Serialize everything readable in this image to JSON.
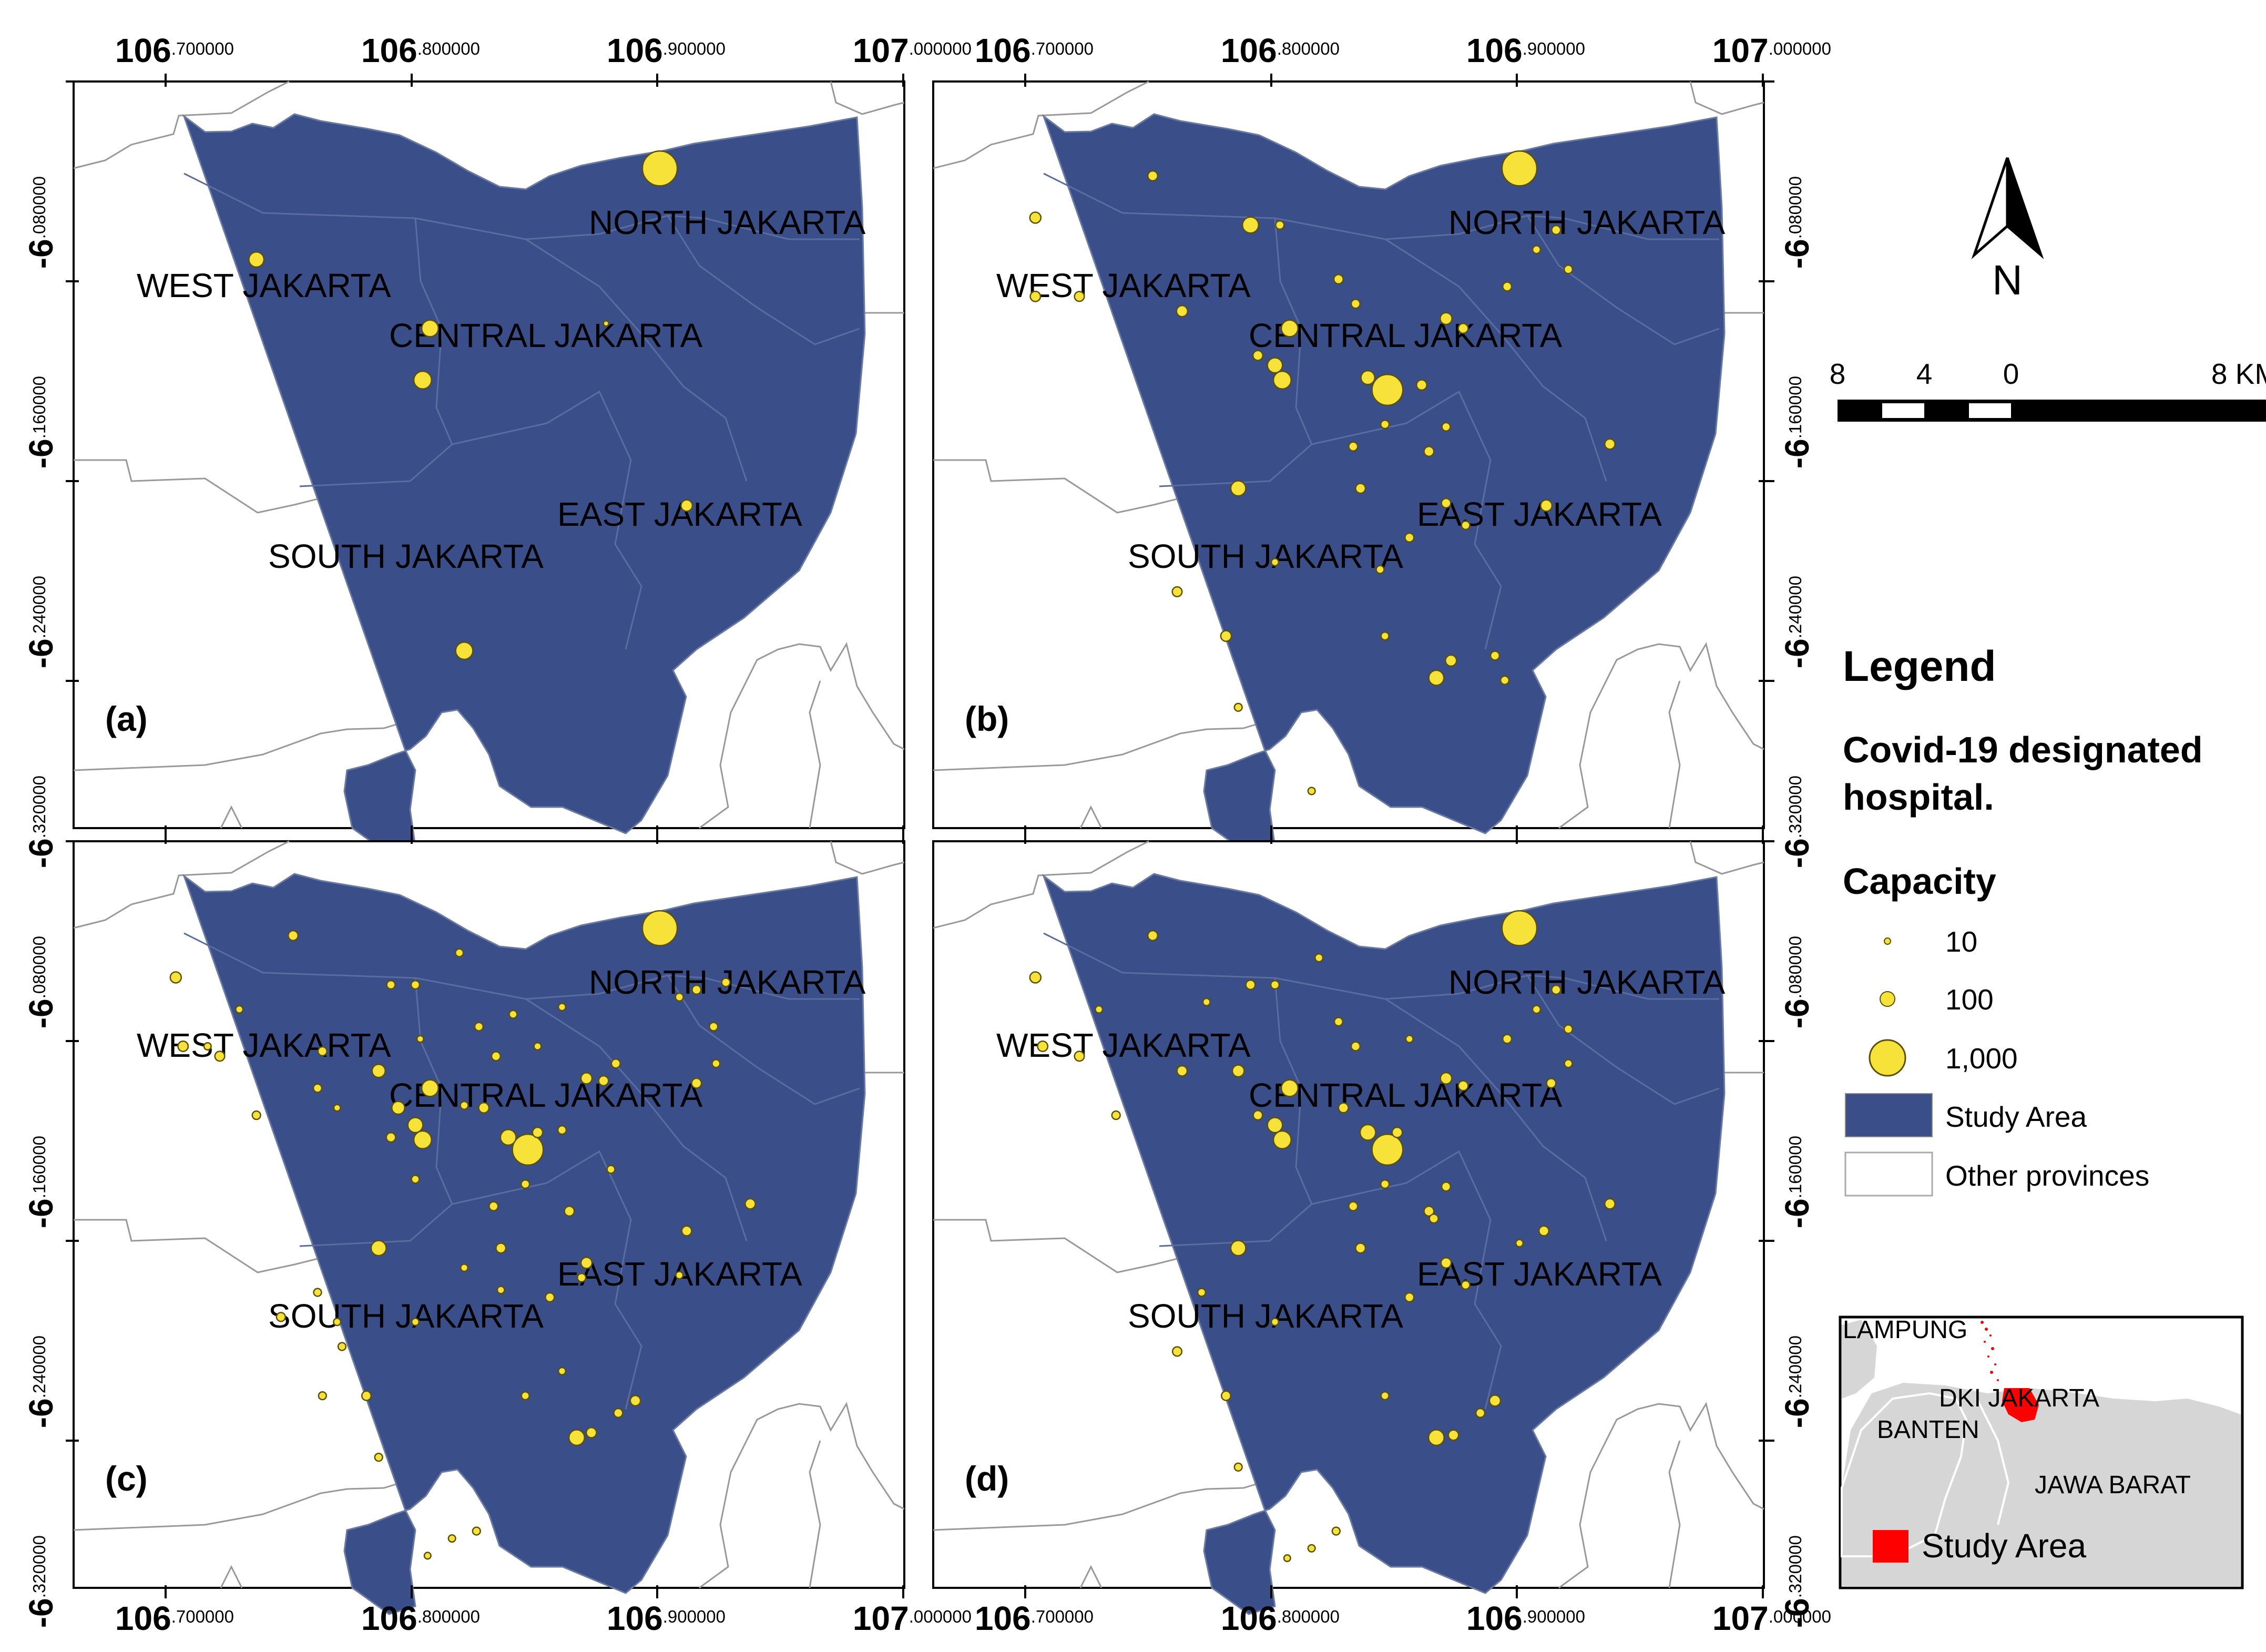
{
  "axes": {
    "x_ticks": [
      {
        "major": "106",
        "minor": ".700000"
      },
      {
        "major": "106",
        "minor": ".800000"
      },
      {
        "major": "106",
        "minor": ".900000"
      },
      {
        "major": "107",
        "minor": ".000000"
      }
    ],
    "y_ticks": [
      {
        "major": "-6",
        "minor": ".080000"
      },
      {
        "major": "-6",
        "minor": ".160000"
      },
      {
        "major": "-6",
        "minor": ".240000"
      },
      {
        "major": "-6",
        "minor": ".320000"
      }
    ]
  },
  "districts": [
    "NORTH JAKARTA",
    "WEST JAKARTA",
    "CENTRAL JAKARTA",
    "EAST JAKARTA",
    "SOUTH JAKARTA"
  ],
  "panels": [
    {
      "letter": "(a)",
      "hospitals": [
        {
          "lon": 106.9,
          "lat": -6.11,
          "cap": 700
        },
        {
          "lon": 106.735,
          "lat": -6.147,
          "cap": 130
        },
        {
          "lon": 106.806,
          "lat": -6.175,
          "cap": 160
        },
        {
          "lon": 106.803,
          "lat": -6.196,
          "cap": 180
        },
        {
          "lon": 106.878,
          "lat": -6.173,
          "cap": 15
        },
        {
          "lon": 106.911,
          "lat": -6.247,
          "cap": 75
        },
        {
          "lon": 106.82,
          "lat": -6.306,
          "cap": 170
        }
      ]
    },
    {
      "letter": "(b)",
      "hospitals": [
        {
          "lon": 106.9,
          "lat": -6.11,
          "cap": 700
        },
        {
          "lon": 106.702,
          "lat": -6.13,
          "cap": 70
        },
        {
          "lon": 106.75,
          "lat": -6.113,
          "cap": 55
        },
        {
          "lon": 106.79,
          "lat": -6.133,
          "cap": 150
        },
        {
          "lon": 106.802,
          "lat": -6.133,
          "cap": 40
        },
        {
          "lon": 106.793,
          "lat": -6.186,
          "cap": 55
        },
        {
          "lon": 106.762,
          "lat": -6.168,
          "cap": 70
        },
        {
          "lon": 106.702,
          "lat": -6.162,
          "cap": 60
        },
        {
          "lon": 106.72,
          "lat": -6.162,
          "cap": 55
        },
        {
          "lon": 106.806,
          "lat": -6.175,
          "cap": 160
        },
        {
          "lon": 106.8,
          "lat": -6.19,
          "cap": 130
        },
        {
          "lon": 106.803,
          "lat": -6.196,
          "cap": 180
        },
        {
          "lon": 106.846,
          "lat": -6.2,
          "cap": 550
        },
        {
          "lon": 106.838,
          "lat": -6.195,
          "cap": 110
        },
        {
          "lon": 106.86,
          "lat": -6.198,
          "cap": 60
        },
        {
          "lon": 106.87,
          "lat": -6.171,
          "cap": 80
        },
        {
          "lon": 106.877,
          "lat": -6.175,
          "cap": 55
        },
        {
          "lon": 106.833,
          "lat": -6.165,
          "cap": 45
        },
        {
          "lon": 106.826,
          "lat": -6.155,
          "cap": 50
        },
        {
          "lon": 106.895,
          "lat": -6.158,
          "cap": 45
        },
        {
          "lon": 106.915,
          "lat": -6.135,
          "cap": 45
        },
        {
          "lon": 106.92,
          "lat": -6.151,
          "cap": 40
        },
        {
          "lon": 106.907,
          "lat": -6.143,
          "cap": 35
        },
        {
          "lon": 106.87,
          "lat": -6.215,
          "cap": 40
        },
        {
          "lon": 106.845,
          "lat": -6.214,
          "cap": 40
        },
        {
          "lon": 106.832,
          "lat": -6.223,
          "cap": 45
        },
        {
          "lon": 106.863,
          "lat": -6.225,
          "cap": 55
        },
        {
          "lon": 106.785,
          "lat": -6.24,
          "cap": 130
        },
        {
          "lon": 106.835,
          "lat": -6.24,
          "cap": 55
        },
        {
          "lon": 106.87,
          "lat": -6.246,
          "cap": 50
        },
        {
          "lon": 106.911,
          "lat": -6.247,
          "cap": 75
        },
        {
          "lon": 106.937,
          "lat": -6.222,
          "cap": 60
        },
        {
          "lon": 106.855,
          "lat": -6.26,
          "cap": 45
        },
        {
          "lon": 106.878,
          "lat": -6.255,
          "cap": 40
        },
        {
          "lon": 106.843,
          "lat": -6.273,
          "cap": 35
        },
        {
          "lon": 106.8,
          "lat": -6.27,
          "cap": 30
        },
        {
          "lon": 106.76,
          "lat": -6.282,
          "cap": 55
        },
        {
          "lon": 106.78,
          "lat": -6.3,
          "cap": 65
        },
        {
          "lon": 106.866,
          "lat": -6.317,
          "cap": 130
        },
        {
          "lon": 106.872,
          "lat": -6.31,
          "cap": 70
        },
        {
          "lon": 106.89,
          "lat": -6.308,
          "cap": 45
        },
        {
          "lon": 106.894,
          "lat": -6.318,
          "cap": 40
        },
        {
          "lon": 106.845,
          "lat": -6.3,
          "cap": 35
        },
        {
          "lon": 106.785,
          "lat": -6.329,
          "cap": 35
        },
        {
          "lon": 106.815,
          "lat": -6.363,
          "cap": 30
        }
      ]
    },
    {
      "letter": "(c)",
      "hospitals": [
        {
          "lon": 106.9,
          "lat": -6.11,
          "cap": 700
        },
        {
          "lon": 106.702,
          "lat": -6.13,
          "cap": 70
        },
        {
          "lon": 106.75,
          "lat": -6.113,
          "cap": 55
        },
        {
          "lon": 106.79,
          "lat": -6.133,
          "cap": 40
        },
        {
          "lon": 106.8,
          "lat": -6.133,
          "cap": 40
        },
        {
          "lon": 106.818,
          "lat": -6.12,
          "cap": 35
        },
        {
          "lon": 106.802,
          "lat": -6.155,
          "cap": 25
        },
        {
          "lon": 106.728,
          "lat": -6.143,
          "cap": 30
        },
        {
          "lon": 106.715,
          "lat": -6.158,
          "cap": 30
        },
        {
          "lon": 106.705,
          "lat": -6.158,
          "cap": 60
        },
        {
          "lon": 106.72,
          "lat": -6.162,
          "cap": 55
        },
        {
          "lon": 106.762,
          "lat": -6.16,
          "cap": 45
        },
        {
          "lon": 106.76,
          "lat": -6.175,
          "cap": 40
        },
        {
          "lon": 106.785,
          "lat": -6.168,
          "cap": 100
        },
        {
          "lon": 106.793,
          "lat": -6.183,
          "cap": 95
        },
        {
          "lon": 106.806,
          "lat": -6.175,
          "cap": 160
        },
        {
          "lon": 106.8,
          "lat": -6.19,
          "cap": 130
        },
        {
          "lon": 106.803,
          "lat": -6.196,
          "cap": 180
        },
        {
          "lon": 106.79,
          "lat": -6.195,
          "cap": 50
        },
        {
          "lon": 106.735,
          "lat": -6.186,
          "cap": 40
        },
        {
          "lon": 106.768,
          "lat": -6.183,
          "cap": 25
        },
        {
          "lon": 106.846,
          "lat": -6.2,
          "cap": 550
        },
        {
          "lon": 106.838,
          "lat": -6.195,
          "cap": 140
        },
        {
          "lon": 106.85,
          "lat": -6.193,
          "cap": 60
        },
        {
          "lon": 106.828,
          "lat": -6.183,
          "cap": 60
        },
        {
          "lon": 106.82,
          "lat": -6.182,
          "cap": 35
        },
        {
          "lon": 106.86,
          "lat": -6.192,
          "cap": 40
        },
        {
          "lon": 106.87,
          "lat": -6.171,
          "cap": 70
        },
        {
          "lon": 106.877,
          "lat": -6.172,
          "cap": 55
        },
        {
          "lon": 106.833,
          "lat": -6.162,
          "cap": 45
        },
        {
          "lon": 106.826,
          "lat": -6.15,
          "cap": 40
        },
        {
          "lon": 106.84,
          "lat": -6.145,
          "cap": 35
        },
        {
          "lon": 106.85,
          "lat": -6.158,
          "cap": 30
        },
        {
          "lon": 106.86,
          "lat": -6.142,
          "cap": 30
        },
        {
          "lon": 106.882,
          "lat": -6.165,
          "cap": 45
        },
        {
          "lon": 106.915,
          "lat": -6.135,
          "cap": 45
        },
        {
          "lon": 106.922,
          "lat": -6.15,
          "cap": 40
        },
        {
          "lon": 106.908,
          "lat": -6.138,
          "cap": 35
        },
        {
          "lon": 106.923,
          "lat": -6.165,
          "cap": 35
        },
        {
          "lon": 106.927,
          "lat": -6.132,
          "cap": 40
        },
        {
          "lon": 106.915,
          "lat": -6.173,
          "cap": 55
        },
        {
          "lon": 106.845,
          "lat": -6.214,
          "cap": 40
        },
        {
          "lon": 106.832,
          "lat": -6.223,
          "cap": 45
        },
        {
          "lon": 106.863,
          "lat": -6.225,
          "cap": 55
        },
        {
          "lon": 106.88,
          "lat": -6.208,
          "cap": 35
        },
        {
          "lon": 106.8,
          "lat": -6.212,
          "cap": 35
        },
        {
          "lon": 106.785,
          "lat": -6.24,
          "cap": 130
        },
        {
          "lon": 106.835,
          "lat": -6.24,
          "cap": 55
        },
        {
          "lon": 106.87,
          "lat": -6.246,
          "cap": 70
        },
        {
          "lon": 106.868,
          "lat": -6.252,
          "cap": 40
        },
        {
          "lon": 106.911,
          "lat": -6.233,
          "cap": 55
        },
        {
          "lon": 106.937,
          "lat": -6.222,
          "cap": 60
        },
        {
          "lon": 106.908,
          "lat": -6.251,
          "cap": 30
        },
        {
          "lon": 106.835,
          "lat": -6.257,
          "cap": 30
        },
        {
          "lon": 106.855,
          "lat": -6.26,
          "cap": 45
        },
        {
          "lon": 106.82,
          "lat": -6.248,
          "cap": 30
        },
        {
          "lon": 106.8,
          "lat": -6.27,
          "cap": 30
        },
        {
          "lon": 106.76,
          "lat": -6.258,
          "cap": 35
        },
        {
          "lon": 106.745,
          "lat": -6.268,
          "cap": 45
        },
        {
          "lon": 106.77,
          "lat": -6.28,
          "cap": 35
        },
        {
          "lon": 106.762,
          "lat": -6.3,
          "cap": 35
        },
        {
          "lon": 106.78,
          "lat": -6.3,
          "cap": 50
        },
        {
          "lon": 106.866,
          "lat": -6.317,
          "cap": 140
        },
        {
          "lon": 106.872,
          "lat": -6.315,
          "cap": 60
        },
        {
          "lon": 106.89,
          "lat": -6.302,
          "cap": 60
        },
        {
          "lon": 106.883,
          "lat": -6.307,
          "cap": 45
        },
        {
          "lon": 106.845,
          "lat": -6.3,
          "cap": 35
        },
        {
          "lon": 106.86,
          "lat": -6.29,
          "cap": 30
        },
        {
          "lon": 106.785,
          "lat": -6.325,
          "cap": 35
        },
        {
          "lon": 106.768,
          "lat": -6.27,
          "cap": 30
        },
        {
          "lon": 106.825,
          "lat": -6.355,
          "cap": 35
        },
        {
          "lon": 106.815,
          "lat": -6.358,
          "cap": 30
        },
        {
          "lon": 106.805,
          "lat": -6.365,
          "cap": 25
        }
      ]
    },
    {
      "letter": "(d)",
      "hospitals": [
        {
          "lon": 106.9,
          "lat": -6.11,
          "cap": 700
        },
        {
          "lon": 106.702,
          "lat": -6.13,
          "cap": 70
        },
        {
          "lon": 106.75,
          "lat": -6.113,
          "cap": 55
        },
        {
          "lon": 106.79,
          "lat": -6.133,
          "cap": 50
        },
        {
          "lon": 106.8,
          "lat": -6.133,
          "cap": 40
        },
        {
          "lon": 106.818,
          "lat": -6.122,
          "cap": 35
        },
        {
          "lon": 106.772,
          "lat": -6.14,
          "cap": 30
        },
        {
          "lon": 106.728,
          "lat": -6.143,
          "cap": 30
        },
        {
          "lon": 106.705,
          "lat": -6.158,
          "cap": 60
        },
        {
          "lon": 106.72,
          "lat": -6.162,
          "cap": 55
        },
        {
          "lon": 106.762,
          "lat": -6.168,
          "cap": 60
        },
        {
          "lon": 106.785,
          "lat": -6.168,
          "cap": 80
        },
        {
          "lon": 106.806,
          "lat": -6.175,
          "cap": 160
        },
        {
          "lon": 106.8,
          "lat": -6.19,
          "cap": 130
        },
        {
          "lon": 106.803,
          "lat": -6.196,
          "cap": 180
        },
        {
          "lon": 106.793,
          "lat": -6.186,
          "cap": 50
        },
        {
          "lon": 106.735,
          "lat": -6.186,
          "cap": 40
        },
        {
          "lon": 106.846,
          "lat": -6.2,
          "cap": 550
        },
        {
          "lon": 106.838,
          "lat": -6.193,
          "cap": 140
        },
        {
          "lon": 106.85,
          "lat": -6.193,
          "cap": 60
        },
        {
          "lon": 106.828,
          "lat": -6.183,
          "cap": 55
        },
        {
          "lon": 106.87,
          "lat": -6.171,
          "cap": 75
        },
        {
          "lon": 106.877,
          "lat": -6.174,
          "cap": 55
        },
        {
          "lon": 106.833,
          "lat": -6.158,
          "cap": 45
        },
        {
          "lon": 106.826,
          "lat": -6.148,
          "cap": 40
        },
        {
          "lon": 106.855,
          "lat": -6.155,
          "cap": 30
        },
        {
          "lon": 106.895,
          "lat": -6.155,
          "cap": 45
        },
        {
          "lon": 106.915,
          "lat": -6.135,
          "cap": 45
        },
        {
          "lon": 106.92,
          "lat": -6.151,
          "cap": 40
        },
        {
          "lon": 106.907,
          "lat": -6.143,
          "cap": 35
        },
        {
          "lon": 106.92,
          "lat": -6.165,
          "cap": 35
        },
        {
          "lon": 106.913,
          "lat": -6.173,
          "cap": 50
        },
        {
          "lon": 106.87,
          "lat": -6.215,
          "cap": 45
        },
        {
          "lon": 106.845,
          "lat": -6.214,
          "cap": 40
        },
        {
          "lon": 106.832,
          "lat": -6.223,
          "cap": 45
        },
        {
          "lon": 106.863,
          "lat": -6.225,
          "cap": 55
        },
        {
          "lon": 106.865,
          "lat": -6.228,
          "cap": 45
        },
        {
          "lon": 106.785,
          "lat": -6.24,
          "cap": 130
        },
        {
          "lon": 106.835,
          "lat": -6.24,
          "cap": 55
        },
        {
          "lon": 106.87,
          "lat": -6.246,
          "cap": 60
        },
        {
          "lon": 106.91,
          "lat": -6.233,
          "cap": 55
        },
        {
          "lon": 106.937,
          "lat": -6.222,
          "cap": 60
        },
        {
          "lon": 106.9,
          "lat": -6.238,
          "cap": 30
        },
        {
          "lon": 106.855,
          "lat": -6.26,
          "cap": 45
        },
        {
          "lon": 106.878,
          "lat": -6.255,
          "cap": 40
        },
        {
          "lon": 106.8,
          "lat": -6.27,
          "cap": 30
        },
        {
          "lon": 106.77,
          "lat": -6.258,
          "cap": 35
        },
        {
          "lon": 106.76,
          "lat": -6.282,
          "cap": 50
        },
        {
          "lon": 106.78,
          "lat": -6.3,
          "cap": 50
        },
        {
          "lon": 106.866,
          "lat": -6.317,
          "cap": 140
        },
        {
          "lon": 106.873,
          "lat": -6.316,
          "cap": 60
        },
        {
          "lon": 106.89,
          "lat": -6.302,
          "cap": 70
        },
        {
          "lon": 106.884,
          "lat": -6.307,
          "cap": 45
        },
        {
          "lon": 106.845,
          "lat": -6.3,
          "cap": 35
        },
        {
          "lon": 106.785,
          "lat": -6.329,
          "cap": 35
        },
        {
          "lon": 106.825,
          "lat": -6.355,
          "cap": 35
        },
        {
          "lon": 106.815,
          "lat": -6.362,
          "cap": 30
        },
        {
          "lon": 106.805,
          "lat": -6.366,
          "cap": 25
        }
      ]
    }
  ],
  "north_arrow": {
    "label": "N"
  },
  "scale_bar": {
    "labels": [
      "8",
      "4",
      "0",
      "8 KM"
    ]
  },
  "legend": {
    "title": "Legend",
    "subtitle_line1": "Covid-19 designated",
    "subtitle_line2": "hospital.",
    "capacity_title": "Capacity",
    "capacity_items": [
      {
        "label": "10",
        "value": 10
      },
      {
        "label": "100",
        "value": 100
      },
      {
        "label": "1,000",
        "value": 1000
      }
    ],
    "study_area_label": "Study Area",
    "other_provinces_label": "Other provinces"
  },
  "colors": {
    "study_area": "#3a4f8a",
    "hospital_fill": "#f7e23a",
    "hospital_stroke": "#5a5000",
    "inset_land": "#d6d6d6",
    "inset_study": "#ff0000"
  },
  "inset": {
    "labels": [
      "LAMPUNG",
      "DKI JAKARTA",
      "BANTEN",
      "JAWA BARAT"
    ],
    "legend_label": "Study Area"
  }
}
